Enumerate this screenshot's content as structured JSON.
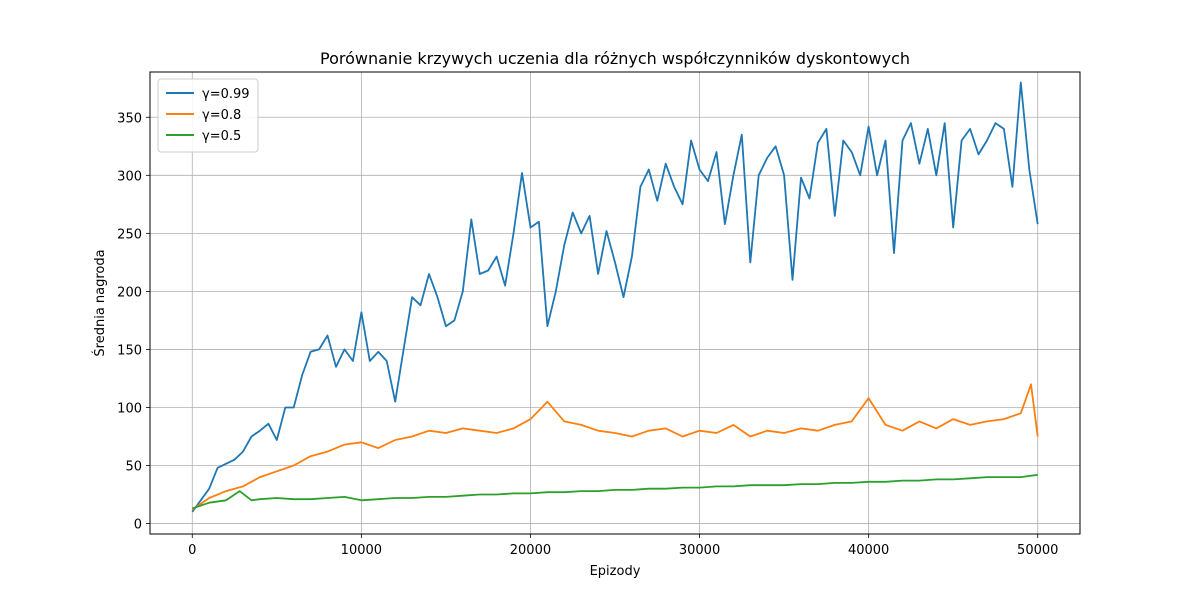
{
  "chart_data": {
    "type": "line",
    "title": "Porównanie krzywych uczenia dla różnych współczynników dyskontowych",
    "xlabel": "Epizody",
    "ylabel": "Średnia nagroda",
    "xlim": [
      -2500,
      52500
    ],
    "ylim": [
      -9,
      389
    ],
    "xticks": [
      0,
      10000,
      20000,
      30000,
      40000,
      50000
    ],
    "yticks": [
      0,
      50,
      100,
      150,
      200,
      250,
      300,
      350
    ],
    "grid": true,
    "legend_position": "top-left",
    "series": [
      {
        "name": "γ=0.99",
        "color": "#1f77b4",
        "points": [
          [
            0,
            10
          ],
          [
            1000,
            30
          ],
          [
            1500,
            48
          ],
          [
            2500,
            55
          ],
          [
            3000,
            62
          ],
          [
            3500,
            75
          ],
          [
            4000,
            80
          ],
          [
            4500,
            86
          ],
          [
            5000,
            72
          ],
          [
            5500,
            100
          ],
          [
            6000,
            100
          ],
          [
            6500,
            128
          ],
          [
            7000,
            148
          ],
          [
            7500,
            150
          ],
          [
            8000,
            162
          ],
          [
            8500,
            135
          ],
          [
            9000,
            150
          ],
          [
            9500,
            140
          ],
          [
            10000,
            182
          ],
          [
            10500,
            140
          ],
          [
            11000,
            148
          ],
          [
            11500,
            140
          ],
          [
            12000,
            105
          ],
          [
            12500,
            150
          ],
          [
            13000,
            195
          ],
          [
            13500,
            188
          ],
          [
            14000,
            215
          ],
          [
            14500,
            195
          ],
          [
            15000,
            170
          ],
          [
            15500,
            175
          ],
          [
            16000,
            200
          ],
          [
            16500,
            262
          ],
          [
            17000,
            215
          ],
          [
            17500,
            218
          ],
          [
            18000,
            230
          ],
          [
            18500,
            205
          ],
          [
            19000,
            250
          ],
          [
            19500,
            302
          ],
          [
            20000,
            255
          ],
          [
            20500,
            260
          ],
          [
            21000,
            170
          ],
          [
            21500,
            200
          ],
          [
            22000,
            240
          ],
          [
            22500,
            268
          ],
          [
            23000,
            250
          ],
          [
            23500,
            265
          ],
          [
            24000,
            215
          ],
          [
            24500,
            252
          ],
          [
            25000,
            225
          ],
          [
            25500,
            195
          ],
          [
            26000,
            230
          ],
          [
            26500,
            290
          ],
          [
            27000,
            305
          ],
          [
            27500,
            278
          ],
          [
            28000,
            310
          ],
          [
            28500,
            290
          ],
          [
            29000,
            275
          ],
          [
            29500,
            330
          ],
          [
            30000,
            305
          ],
          [
            30500,
            295
          ],
          [
            31000,
            320
          ],
          [
            31500,
            258
          ],
          [
            32000,
            300
          ],
          [
            32500,
            335
          ],
          [
            33000,
            225
          ],
          [
            33500,
            300
          ],
          [
            34000,
            315
          ],
          [
            34500,
            325
          ],
          [
            35000,
            300
          ],
          [
            35500,
            210
          ],
          [
            36000,
            298
          ],
          [
            36500,
            280
          ],
          [
            37000,
            328
          ],
          [
            37500,
            340
          ],
          [
            38000,
            265
          ],
          [
            38500,
            330
          ],
          [
            39000,
            320
          ],
          [
            39500,
            300
          ],
          [
            40000,
            342
          ],
          [
            40500,
            300
          ],
          [
            41000,
            330
          ],
          [
            41500,
            233
          ],
          [
            42000,
            330
          ],
          [
            42500,
            345
          ],
          [
            43000,
            310
          ],
          [
            43500,
            340
          ],
          [
            44000,
            300
          ],
          [
            44500,
            345
          ],
          [
            45000,
            255
          ],
          [
            45500,
            330
          ],
          [
            46000,
            340
          ],
          [
            46500,
            318
          ],
          [
            47000,
            330
          ],
          [
            47500,
            345
          ],
          [
            48000,
            340
          ],
          [
            48500,
            290
          ],
          [
            49000,
            380
          ],
          [
            49500,
            305
          ],
          [
            50000,
            258
          ]
        ]
      },
      {
        "name": "γ=0.8",
        "color": "#ff7f0e",
        "points": [
          [
            0,
            12
          ],
          [
            1000,
            22
          ],
          [
            2000,
            28
          ],
          [
            3000,
            32
          ],
          [
            4000,
            40
          ],
          [
            5000,
            45
          ],
          [
            6000,
            50
          ],
          [
            7000,
            58
          ],
          [
            8000,
            62
          ],
          [
            9000,
            68
          ],
          [
            10000,
            70
          ],
          [
            11000,
            65
          ],
          [
            12000,
            72
          ],
          [
            13000,
            75
          ],
          [
            14000,
            80
          ],
          [
            15000,
            78
          ],
          [
            16000,
            82
          ],
          [
            17000,
            80
          ],
          [
            18000,
            78
          ],
          [
            19000,
            82
          ],
          [
            20000,
            90
          ],
          [
            21000,
            105
          ],
          [
            22000,
            88
          ],
          [
            23000,
            85
          ],
          [
            24000,
            80
          ],
          [
            25000,
            78
          ],
          [
            26000,
            75
          ],
          [
            27000,
            80
          ],
          [
            28000,
            82
          ],
          [
            29000,
            75
          ],
          [
            30000,
            80
          ],
          [
            31000,
            78
          ],
          [
            32000,
            85
          ],
          [
            33000,
            75
          ],
          [
            34000,
            80
          ],
          [
            35000,
            78
          ],
          [
            36000,
            82
          ],
          [
            37000,
            80
          ],
          [
            38000,
            85
          ],
          [
            39000,
            88
          ],
          [
            40000,
            108
          ],
          [
            41000,
            85
          ],
          [
            42000,
            80
          ],
          [
            43000,
            88
          ],
          [
            44000,
            82
          ],
          [
            45000,
            90
          ],
          [
            46000,
            85
          ],
          [
            47000,
            88
          ],
          [
            48000,
            90
          ],
          [
            49000,
            95
          ],
          [
            49600,
            120
          ],
          [
            50000,
            75
          ]
        ]
      },
      {
        "name": "γ=0.5",
        "color": "#2ca02c",
        "points": [
          [
            0,
            13
          ],
          [
            1000,
            18
          ],
          [
            2000,
            20
          ],
          [
            2800,
            28
          ],
          [
            3500,
            20
          ],
          [
            4000,
            21
          ],
          [
            5000,
            22
          ],
          [
            6000,
            21
          ],
          [
            7000,
            21
          ],
          [
            8000,
            22
          ],
          [
            9000,
            23
          ],
          [
            10000,
            20
          ],
          [
            11000,
            21
          ],
          [
            12000,
            22
          ],
          [
            13000,
            22
          ],
          [
            14000,
            23
          ],
          [
            15000,
            23
          ],
          [
            16000,
            24
          ],
          [
            17000,
            25
          ],
          [
            18000,
            25
          ],
          [
            19000,
            26
          ],
          [
            20000,
            26
          ],
          [
            21000,
            27
          ],
          [
            22000,
            27
          ],
          [
            23000,
            28
          ],
          [
            24000,
            28
          ],
          [
            25000,
            29
          ],
          [
            26000,
            29
          ],
          [
            27000,
            30
          ],
          [
            28000,
            30
          ],
          [
            29000,
            31
          ],
          [
            30000,
            31
          ],
          [
            31000,
            32
          ],
          [
            32000,
            32
          ],
          [
            33000,
            33
          ],
          [
            34000,
            33
          ],
          [
            35000,
            33
          ],
          [
            36000,
            34
          ],
          [
            37000,
            34
          ],
          [
            38000,
            35
          ],
          [
            39000,
            35
          ],
          [
            40000,
            36
          ],
          [
            41000,
            36
          ],
          [
            42000,
            37
          ],
          [
            43000,
            37
          ],
          [
            44000,
            38
          ],
          [
            45000,
            38
          ],
          [
            46000,
            39
          ],
          [
            47000,
            40
          ],
          [
            48000,
            40
          ],
          [
            49000,
            40
          ],
          [
            50000,
            42
          ]
        ]
      }
    ]
  }
}
